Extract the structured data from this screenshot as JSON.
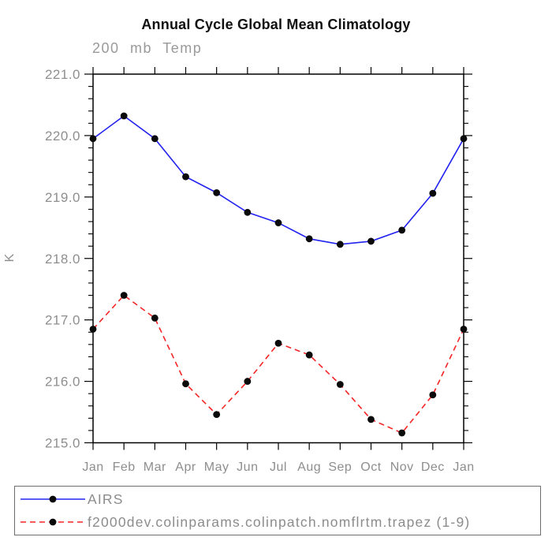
{
  "colors": {
    "title": "#101010",
    "axis": "#000000",
    "labels": "#8e8e8e",
    "marker": "#0a0a0a",
    "airs_blue": "#2323f0",
    "model_red": "#f52525",
    "legend_border": "#6e6e6e"
  },
  "chart_data": {
    "type": "line",
    "title": "Annual Cycle Global Mean Climatology",
    "subtitle": "200 mb Temp",
    "ylabel": "K",
    "xlabel": "",
    "categories": [
      "Jan",
      "Feb",
      "Mar",
      "Apr",
      "May",
      "Jun",
      "Jul",
      "Aug",
      "Sep",
      "Oct",
      "Nov",
      "Dec",
      "Jan"
    ],
    "ylim": [
      215.0,
      221.0
    ],
    "y_tick_labels": [
      "215.0",
      "216.0",
      "217.0",
      "218.0",
      "219.0",
      "220.0",
      "221.0"
    ],
    "y_major_step": 1.0,
    "y_minor_step": 0.2,
    "grid": false,
    "legend_position": "bottom",
    "series": [
      {
        "name": "AIRS",
        "color": "#2323f0",
        "line_style": "solid",
        "marker": "black-dot",
        "values": [
          219.95,
          220.32,
          219.95,
          219.33,
          219.07,
          218.75,
          218.58,
          218.32,
          218.23,
          218.28,
          218.46,
          219.06,
          219.95
        ]
      },
      {
        "name": "f2000dev.colinparams.colinpatch.nomflrtm.trapez (1-9)",
        "color": "#f52525",
        "line_style": "dashed",
        "marker": "black-dot",
        "values": [
          216.85,
          217.4,
          217.03,
          215.96,
          215.46,
          216.0,
          216.62,
          216.43,
          215.95,
          215.38,
          215.16,
          215.78,
          216.85
        ]
      }
    ]
  }
}
